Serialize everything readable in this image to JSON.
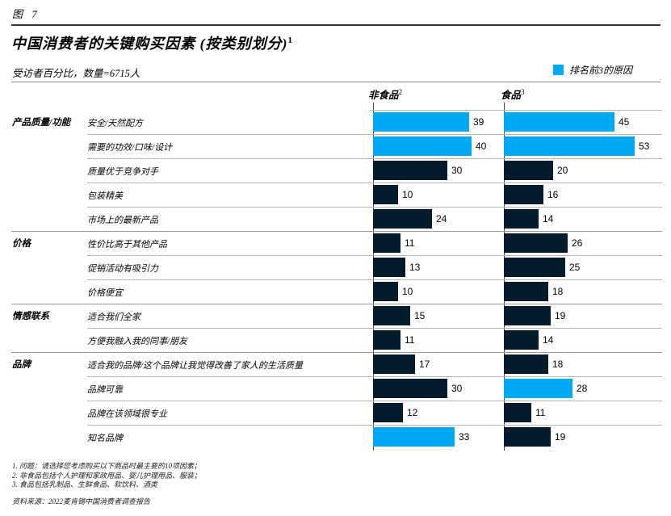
{
  "header": {
    "figure_label": "图 7",
    "title": "中国消费者的关键购买因素 (按类别划分)",
    "title_sup": "1",
    "subtitle": "受访者百分比，数量=6715人"
  },
  "legend": {
    "label": "排名前3的原因",
    "swatch_color": "#00A9F4"
  },
  "colors": {
    "top3_highlight": "#00A9F4",
    "bar_default": "#051C2C"
  },
  "chart_data": {
    "type": "bar",
    "orientation": "horizontal",
    "value_unit": "% of respondents (受访者百分比)",
    "x_max": 55,
    "legend_entries": [
      {
        "label": "排名前3的原因",
        "color": "#00A9F4"
      }
    ],
    "columns": [
      {
        "label": "非食品",
        "superscript": "2"
      },
      {
        "label": "食品",
        "superscript": "3"
      }
    ],
    "groups": [
      {
        "category": "产品质量/功能",
        "rows": [
          {
            "label": "安全/天然配方",
            "values": [
              {
                "value": 39,
                "top3": true
              },
              {
                "value": 45,
                "top3": true
              }
            ]
          },
          {
            "label": "需要的功效/口味/设计",
            "values": [
              {
                "value": 40,
                "top3": true
              },
              {
                "value": 53,
                "top3": true
              }
            ]
          },
          {
            "label": "质量优于竞争对手",
            "values": [
              {
                "value": 30,
                "top3": false
              },
              {
                "value": 20,
                "top3": false
              }
            ]
          },
          {
            "label": "包装精美",
            "values": [
              {
                "value": 10,
                "top3": false
              },
              {
                "value": 16,
                "top3": false
              }
            ]
          },
          {
            "label": "市场上的最新产品",
            "values": [
              {
                "value": 24,
                "top3": false
              },
              {
                "value": 14,
                "top3": false
              }
            ]
          }
        ]
      },
      {
        "category": "价格",
        "rows": [
          {
            "label": "性价比高于其他产品",
            "values": [
              {
                "value": 11,
                "top3": false
              },
              {
                "value": 26,
                "top3": false
              }
            ]
          },
          {
            "label": "促销活动有吸引力",
            "values": [
              {
                "value": 13,
                "top3": false
              },
              {
                "value": 25,
                "top3": false
              }
            ]
          },
          {
            "label": "价格便宜",
            "values": [
              {
                "value": 10,
                "top3": false
              },
              {
                "value": 18,
                "top3": false
              }
            ]
          }
        ]
      },
      {
        "category": "情感联系",
        "rows": [
          {
            "label": "适合我们全家",
            "values": [
              {
                "value": 15,
                "top3": false
              },
              {
                "value": 19,
                "top3": false
              }
            ]
          },
          {
            "label": "方便我融入我的同事/朋友",
            "values": [
              {
                "value": 11,
                "top3": false
              },
              {
                "value": 14,
                "top3": false
              }
            ]
          }
        ]
      },
      {
        "category": "品牌",
        "rows": [
          {
            "label": "适合我的品牌/这个品牌让我觉得改善了家人的生活质量",
            "values": [
              {
                "value": 17,
                "top3": false
              },
              {
                "value": 18,
                "top3": false
              }
            ]
          },
          {
            "label": "品牌可靠",
            "values": [
              {
                "value": 30,
                "top3": false
              },
              {
                "value": 28,
                "top3": true
              }
            ]
          },
          {
            "label": "品牌在该领域很专业",
            "values": [
              {
                "value": 12,
                "top3": false
              },
              {
                "value": 11,
                "top3": false
              }
            ]
          },
          {
            "label": "知名品牌",
            "values": [
              {
                "value": 33,
                "top3": true
              },
              {
                "value": 19,
                "top3": false
              }
            ]
          }
        ]
      }
    ]
  },
  "footnotes": [
    "1. 问题：请选择您考虑购买以下商品时最主要的10项因素；",
    "2. 非食品包括个人护理和家政用品、婴儿护理用品、服装；",
    "3. 食品包括乳制品、生鲜食品、软饮料、酒类"
  ],
  "source": "资料来源：2022麦肯锡中国消费者调查报告"
}
